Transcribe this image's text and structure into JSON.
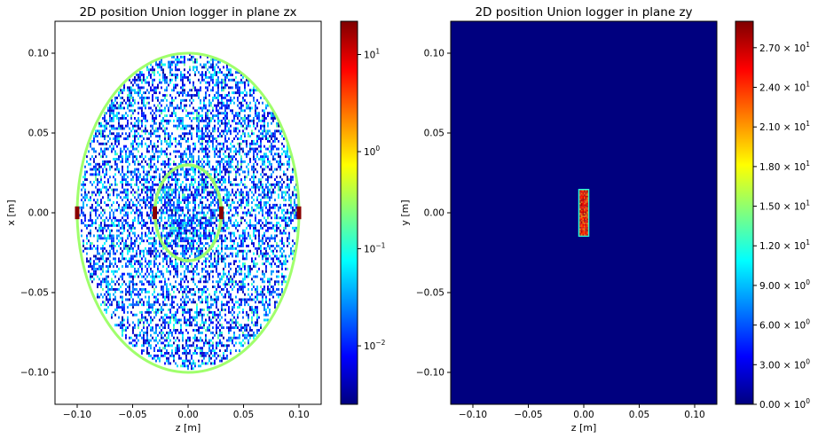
{
  "chart_data": [
    {
      "type": "heatmap",
      "title": "2D position Union logger in plane zx",
      "xlabel": "z [m]",
      "ylabel": "x [m]",
      "xlim": [
        -0.12,
        0.12
      ],
      "ylim": [
        -0.12,
        0.12
      ],
      "xticks": [
        -0.1,
        -0.05,
        0.0,
        0.05,
        0.1
      ],
      "xtick_labels": [
        "−0.10",
        "−0.05",
        "0.00",
        "0.05",
        "0.10"
      ],
      "yticks": [
        -0.1,
        -0.05,
        0.0,
        0.05,
        0.1
      ],
      "ytick_labels": [
        "−0.10",
        "−0.05",
        "0.00",
        "0.05",
        "0.10"
      ],
      "colorbar": {
        "scale": "log",
        "range": [
          0.0025,
          22
        ],
        "colormap": "jet",
        "ticks": [
          0.01,
          0.1,
          1,
          10
        ],
        "tick_labels": [
          {
            "base": "10",
            "exp": "−2"
          },
          {
            "base": "10",
            "exp": "−1"
          },
          {
            "base": "10",
            "exp": "0"
          },
          {
            "base": "10",
            "exp": "1"
          }
        ]
      },
      "features": {
        "outer_ring_radius": 0.1,
        "inner_ring_radius": 0.03,
        "high_intensity_points_z": [
          -0.1,
          -0.03,
          0.03,
          0.1
        ],
        "ring_intensity": 0.3,
        "hotspot_intensity": 20
      }
    },
    {
      "type": "heatmap",
      "title": "2D position Union logger in plane zy",
      "xlabel": "z [m]",
      "ylabel": "y [m]",
      "xlim": [
        -0.12,
        0.12
      ],
      "ylim": [
        -0.12,
        0.12
      ],
      "xticks": [
        -0.1,
        -0.05,
        0.0,
        0.05,
        0.1
      ],
      "xtick_labels": [
        "−0.10",
        "−0.05",
        "0.00",
        "0.05",
        "0.10"
      ],
      "yticks": [
        -0.1,
        -0.05,
        0.0,
        0.05,
        0.1
      ],
      "ytick_labels": [
        "−0.10",
        "−0.05",
        "0.00",
        "0.05",
        "0.10"
      ],
      "colorbar": {
        "scale": "linear",
        "range": [
          0,
          29
        ],
        "colormap": "jet",
        "ticks": [
          0,
          3,
          6,
          9,
          12,
          15,
          18,
          21,
          24,
          27
        ],
        "tick_labels": [
          {
            "base": "0.00 × 10",
            "exp": "0"
          },
          {
            "base": "3.00 × 10",
            "exp": "0"
          },
          {
            "base": "6.00 × 10",
            "exp": "0"
          },
          {
            "base": "9.00 × 10",
            "exp": "0"
          },
          {
            "base": "1.20 × 10",
            "exp": "1"
          },
          {
            "base": "1.50 × 10",
            "exp": "1"
          },
          {
            "base": "1.80 × 10",
            "exp": "1"
          },
          {
            "base": "2.10 × 10",
            "exp": "1"
          },
          {
            "base": "2.40 × 10",
            "exp": "1"
          },
          {
            "base": "2.70 × 10",
            "exp": "1"
          }
        ]
      },
      "background_value": 0,
      "features": {
        "rectangle_z": [
          -0.005,
          0.005
        ],
        "rectangle_y": [
          -0.015,
          0.015
        ],
        "rectangle_intensity": 25,
        "rectangle_edge_intensity": 12
      }
    }
  ]
}
